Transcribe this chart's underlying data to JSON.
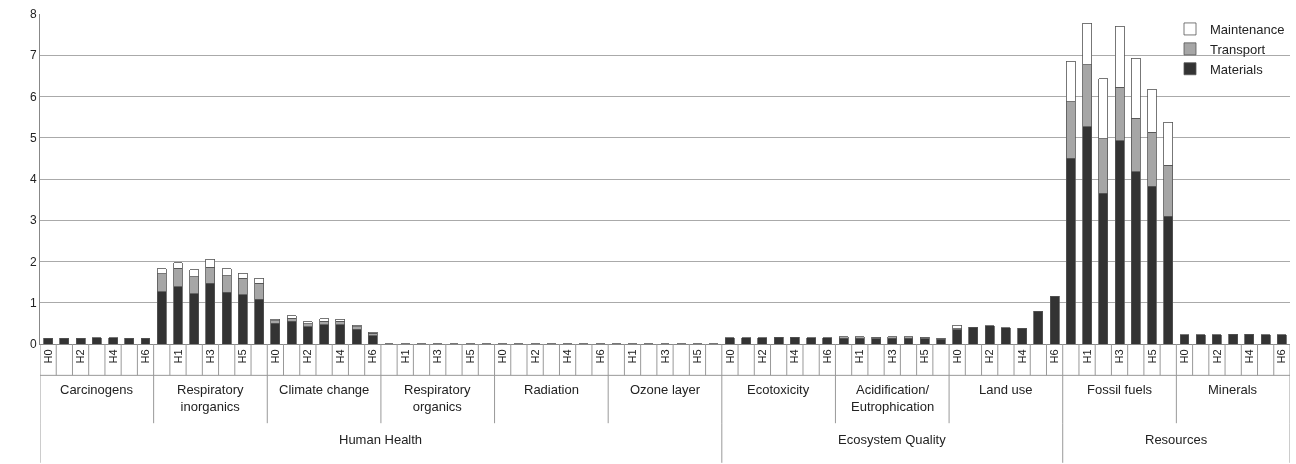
{
  "chart_data": {
    "type": "bar",
    "stacked": true,
    "categories": [
      "H0",
      null,
      "H2",
      null,
      "H4",
      null,
      "H6",
      null,
      "H1",
      null,
      "H3",
      null,
      "H5",
      null,
      "H0",
      null,
      "H2",
      null,
      "H4",
      null,
      "H6",
      null,
      "H1",
      null,
      "H3",
      null,
      "H5",
      null,
      "H0",
      null,
      "H2",
      null,
      "H4",
      null,
      "H6",
      null,
      "H1",
      null,
      "H3",
      null,
      "H5",
      null,
      "H0",
      null,
      "H2",
      null,
      "H4",
      null,
      "H6",
      null,
      "H1",
      null,
      "H3",
      null,
      "H5",
      null,
      "H0",
      null,
      "H2",
      null,
      "H4",
      null,
      "H6",
      null,
      "H1",
      null,
      "H3",
      null,
      "H5",
      null,
      "H0",
      null,
      "H2",
      null,
      "H4",
      null,
      "H6"
    ],
    "series": [
      {
        "name": "Materials",
        "color": "#333333",
        "values": [
          0.14,
          0.14,
          0.14,
          0.15,
          0.15,
          0.14,
          0.14,
          1.27,
          1.39,
          1.22,
          1.47,
          1.25,
          1.2,
          1.09,
          0.5,
          0.55,
          0.42,
          0.47,
          0.47,
          0.36,
          0.2,
          0.01,
          0.01,
          0.01,
          0.01,
          0.01,
          0.01,
          0.01,
          0.01,
          0.01,
          0.01,
          0.01,
          0.01,
          0.01,
          0.01,
          0.01,
          0.01,
          0.01,
          0.01,
          0.01,
          0.01,
          0.01,
          0.15,
          0.15,
          0.15,
          0.16,
          0.16,
          0.15,
          0.15,
          0.14,
          0.14,
          0.13,
          0.14,
          0.14,
          0.13,
          0.12,
          0.35,
          0.41,
          0.44,
          0.4,
          0.38,
          0.8,
          1.16,
          4.5,
          5.27,
          3.66,
          4.93,
          4.17,
          3.83,
          3.1,
          0.22,
          0.22,
          0.23,
          0.24,
          0.24,
          0.22,
          0.22
        ]
      },
      {
        "name": "Transport",
        "color": "#a6a6a6",
        "values": [
          null,
          null,
          null,
          null,
          null,
          null,
          null,
          0.43,
          0.45,
          0.41,
          0.39,
          0.4,
          0.39,
          0.38,
          0.06,
          0.08,
          0.07,
          0.08,
          0.08,
          0.06,
          0.06,
          null,
          null,
          null,
          null,
          null,
          null,
          null,
          null,
          null,
          null,
          null,
          null,
          null,
          null,
          null,
          null,
          null,
          null,
          null,
          null,
          null,
          null,
          null,
          null,
          null,
          null,
          null,
          null,
          0.03,
          0.04,
          0.03,
          0.04,
          0.03,
          0.03,
          0.02,
          0.02,
          null,
          null,
          null,
          null,
          null,
          null,
          1.37,
          1.5,
          1.31,
          1.29,
          1.3,
          1.3,
          1.23,
          null,
          null,
          null,
          null,
          null,
          null,
          null
        ]
      },
      {
        "name": "Maintenance",
        "color": "#ffffff",
        "values": [
          null,
          null,
          null,
          null,
          null,
          null,
          null,
          0.12,
          0.13,
          0.17,
          0.19,
          0.18,
          0.13,
          0.12,
          0.04,
          0.06,
          0.05,
          0.06,
          0.05,
          0.04,
          0.03,
          null,
          null,
          null,
          null,
          null,
          null,
          null,
          null,
          null,
          null,
          null,
          null,
          null,
          null,
          null,
          null,
          null,
          null,
          null,
          null,
          null,
          null,
          null,
          null,
          null,
          null,
          null,
          null,
          null,
          null,
          null,
          null,
          null,
          null,
          null,
          0.08,
          null,
          null,
          null,
          null,
          null,
          null,
          0.98,
          1.01,
          1.46,
          1.48,
          1.46,
          1.04,
          1.04,
          null,
          null,
          null,
          null,
          null,
          null,
          null
        ]
      }
    ],
    "ylim": [
      0,
      8
    ],
    "yticks": [
      0,
      1,
      2,
      3,
      4,
      5,
      6,
      7,
      8
    ],
    "grid": "y",
    "legend": "top right",
    "annotations": [
      "Carcinogens",
      "Respiratory\ninorganics",
      "Climate change",
      "Respiratory\norganics",
      "Radiation",
      "Ozone layer",
      "Ecotoxicity",
      "Acidification/\nEutrophication",
      "Land use",
      "Fossil fuels",
      "Minerals",
      "Human Health",
      "Ecosystem Quality",
      "Resources"
    ]
  }
}
